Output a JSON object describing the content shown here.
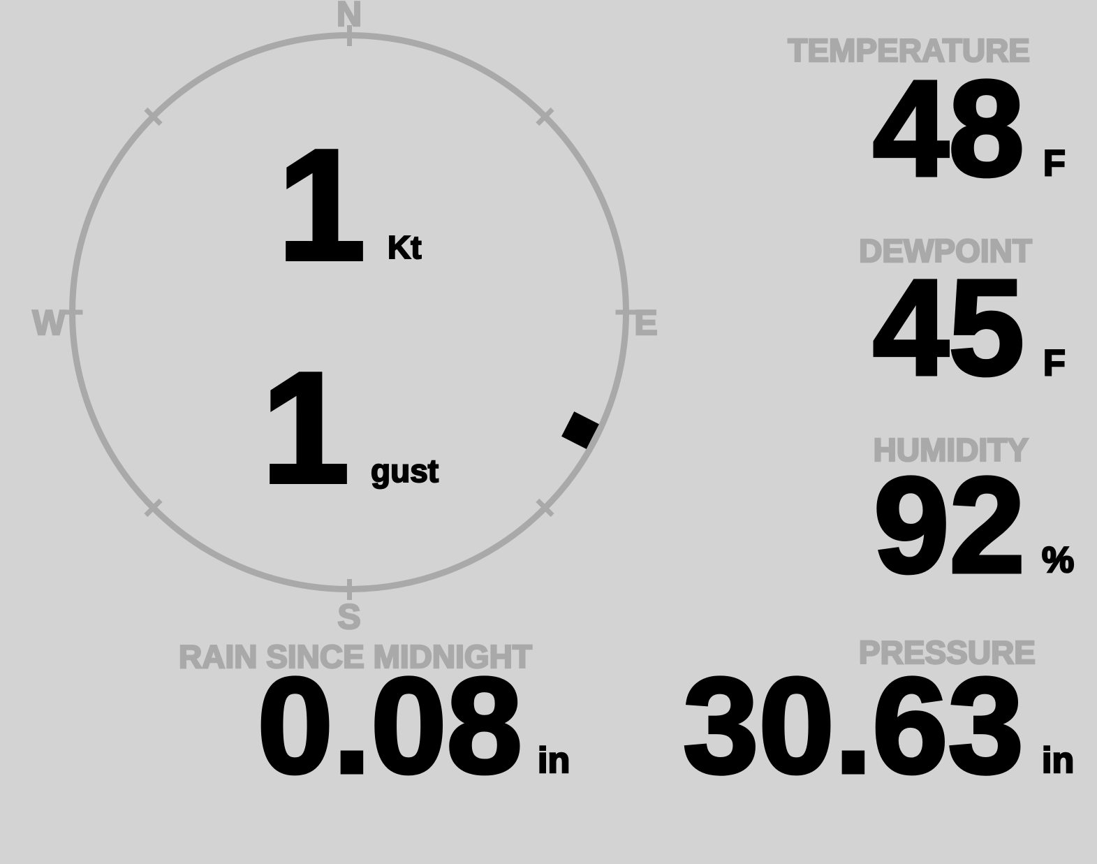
{
  "colors": {
    "background": "#d3d3d3",
    "muted": "#a9a9a9",
    "ink": "#000000"
  },
  "compass": {
    "cardinal_labels": {
      "north": "N",
      "east": "E",
      "south": "S",
      "west": "W"
    },
    "wind_speed": {
      "value": "1",
      "unit": "Kt"
    },
    "wind_gust": {
      "value": "1",
      "unit": "gust"
    },
    "wind_direction_deg": 117
  },
  "metrics": {
    "temperature": {
      "label": "TEMPERATURE",
      "value": "48",
      "unit": "F"
    },
    "dewpoint": {
      "label": "DEWPOINT",
      "value": "45",
      "unit": "F"
    },
    "humidity": {
      "label": "HUMIDITY",
      "value": "92",
      "unit": "%"
    },
    "pressure": {
      "label": "PRESSURE",
      "value": "30.63",
      "unit": "in"
    },
    "rain_since_midnight": {
      "label": "RAIN SINCE MIDNIGHT",
      "value": "0.08",
      "unit": "in"
    }
  }
}
